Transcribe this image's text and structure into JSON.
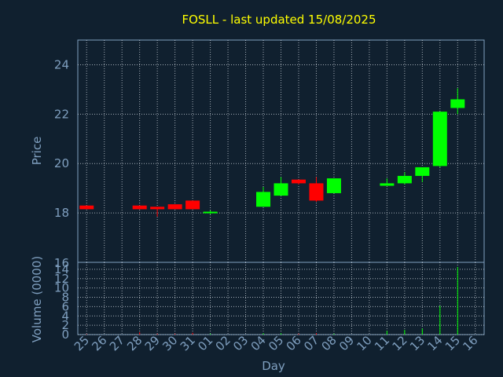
{
  "chart_data": {
    "type": "candlestick",
    "title": "FOSLL - last updated 15/08/2025",
    "xlabel": "Day",
    "grid": true,
    "colors": {
      "background": "#10202f",
      "title": "#ffff00",
      "axis_text": "#7f9fbf",
      "grid": "#c8d0d8",
      "up": "#00ff00",
      "down": "#ff0000"
    },
    "x_ticks": [
      "25",
      "26",
      "27",
      "28",
      "29",
      "30",
      "31",
      "01",
      "02",
      "03",
      "04",
      "05",
      "06",
      "07",
      "08",
      "09",
      "10",
      "11",
      "12",
      "13",
      "14",
      "15",
      "16"
    ],
    "price_panel": {
      "ylabel": "Price",
      "ylim": [
        16,
        25
      ],
      "yticks": [
        18,
        20,
        22,
        24
      ],
      "ytick_labels": [
        "18",
        "20",
        "22",
        "24"
      ]
    },
    "volume_panel": {
      "ylabel": "Volume (0000)",
      "ylim": [
        0,
        15.5
      ],
      "yticks": [
        0,
        2,
        4,
        6,
        8,
        10,
        12,
        14
      ],
      "ytick_labels": [
        "0",
        "2",
        "4",
        "6",
        "8",
        "10",
        "12",
        "14"
      ],
      "top_label": "16"
    },
    "series": [
      {
        "day": "25",
        "open": 18.3,
        "high": 18.3,
        "low": 18.15,
        "close": 18.15,
        "volume": 0.1
      },
      {
        "day": "28",
        "open": 18.3,
        "high": 18.3,
        "low": 18.15,
        "close": 18.15,
        "volume": 0.5
      },
      {
        "day": "29",
        "open": 18.25,
        "high": 18.25,
        "low": 17.85,
        "close": 18.15,
        "volume": 0.2
      },
      {
        "day": "30",
        "open": 18.35,
        "high": 18.35,
        "low": 18.15,
        "close": 18.15,
        "volume": 0.2
      },
      {
        "day": "31",
        "open": 18.5,
        "high": 18.5,
        "low": 18.15,
        "close": 18.15,
        "volume": 0.4
      },
      {
        "day": "01",
        "open": 18.0,
        "high": 18.1,
        "low": 17.95,
        "close": 18.05,
        "volume": 0.2
      },
      {
        "day": "04",
        "open": 18.25,
        "high": 19.05,
        "low": 18.25,
        "close": 18.85,
        "volume": 0.3
      },
      {
        "day": "05",
        "open": 18.7,
        "high": 19.45,
        "low": 18.7,
        "close": 19.2,
        "volume": 0.3
      },
      {
        "day": "06",
        "open": 19.35,
        "high": 19.35,
        "low": 19.15,
        "close": 19.2,
        "volume": 0.2
      },
      {
        "day": "07",
        "open": 19.2,
        "high": 19.45,
        "low": 18.45,
        "close": 18.5,
        "volume": 0.3
      },
      {
        "day": "08",
        "open": 18.8,
        "high": 19.4,
        "low": 18.8,
        "close": 19.4,
        "volume": 0.2
      },
      {
        "day": "11",
        "open": 19.1,
        "high": 19.4,
        "low": 19.1,
        "close": 19.2,
        "volume": 0.8
      },
      {
        "day": "12",
        "open": 19.2,
        "high": 19.65,
        "low": 19.15,
        "close": 19.5,
        "volume": 1.0
      },
      {
        "day": "13",
        "open": 19.5,
        "high": 19.85,
        "low": 19.25,
        "close": 19.85,
        "volume": 1.3
      },
      {
        "day": "14",
        "open": 19.9,
        "high": 22.1,
        "low": 19.85,
        "close": 22.1,
        "volume": 6.2
      },
      {
        "day": "15",
        "open": 22.25,
        "high": 23.05,
        "low": 22.0,
        "close": 22.6,
        "volume": 14.5
      }
    ]
  }
}
